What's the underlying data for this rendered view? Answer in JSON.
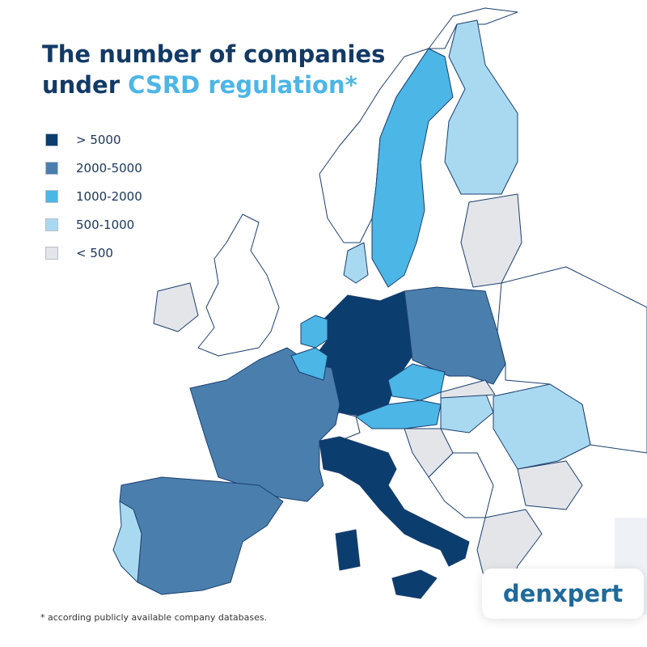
{
  "title": {
    "line1": "The number of  companies",
    "line2_start": "under",
    "highlight": "CSRD regulation*"
  },
  "legend": {
    "items": [
      {
        "label": "> 5000",
        "color": "#0b3d6e"
      },
      {
        "label": "2000-5000",
        "color": "#4a7fad"
      },
      {
        "label": "1000-2000",
        "color": "#4cb6e6"
      },
      {
        "label": "500-1000",
        "color": "#a9d9f1"
      },
      {
        "label": "< 500",
        "color": "#e3e5e9"
      }
    ]
  },
  "footnote": "*  according publicly available company databases.",
  "logo": "denxpert"
}
